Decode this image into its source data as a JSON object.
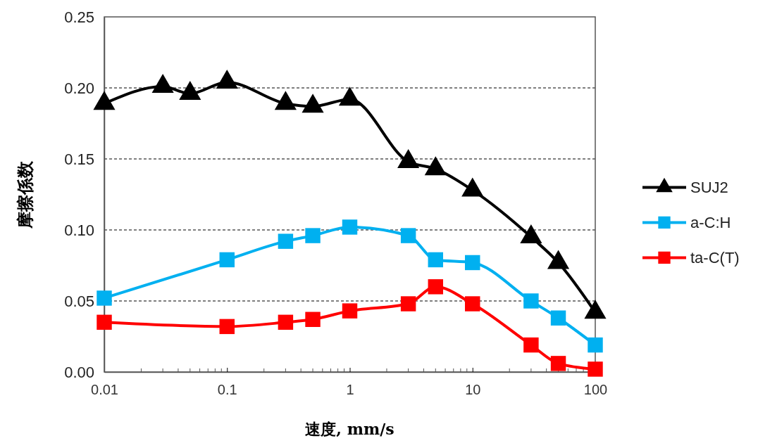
{
  "chart_data": {
    "type": "line",
    "xlabel": "速度, mm/s",
    "ylabel": "摩擦係数",
    "log": "x",
    "grid": "y",
    "legend": "right",
    "line_style": "solid",
    "xlim": [
      0.01,
      100
    ],
    "xticks": [
      0.01,
      0.1,
      1,
      10,
      100
    ],
    "ylim": [
      0,
      0.25
    ],
    "yticks": [
      {
        "value": 0,
        "label": "0.00"
      },
      {
        "value": 0.05,
        "label": "0.05"
      },
      {
        "value": 0.1,
        "label": "0.10"
      },
      {
        "value": 0.15,
        "label": "0.15"
      },
      {
        "value": 0.2,
        "label": "0.20"
      },
      {
        "value": 0.25,
        "label": "0.25"
      }
    ],
    "series": [
      {
        "name": "SUJ2",
        "color": "#000000",
        "marker": "triangle",
        "x": [
          0.01,
          0.03,
          0.05,
          0.1,
          0.3,
          0.5,
          1,
          3,
          5,
          10,
          30,
          50,
          100
        ],
        "values": [
          0.189,
          0.201,
          0.196,
          0.204,
          0.189,
          0.187,
          0.192,
          0.148,
          0.143,
          0.128,
          0.095,
          0.077,
          0.042
        ]
      },
      {
        "name": "a-C:H",
        "color": "#00b0f0",
        "marker": "square",
        "x": [
          0.01,
          0.1,
          0.3,
          0.5,
          1,
          3,
          5,
          10,
          30,
          50,
          100
        ],
        "values": [
          0.052,
          0.079,
          0.092,
          0.096,
          0.102,
          0.096,
          0.079,
          0.077,
          0.05,
          0.038,
          0.019
        ]
      },
      {
        "name": "ta-C(T)",
        "color": "#ff0000",
        "marker": "square",
        "x": [
          0.01,
          0.1,
          0.3,
          0.5,
          1,
          3,
          5,
          10,
          30,
          50,
          100
        ],
        "values": [
          0.035,
          0.032,
          0.035,
          0.037,
          0.043,
          0.048,
          0.06,
          0.048,
          0.019,
          0.006,
          0.002
        ]
      }
    ]
  }
}
